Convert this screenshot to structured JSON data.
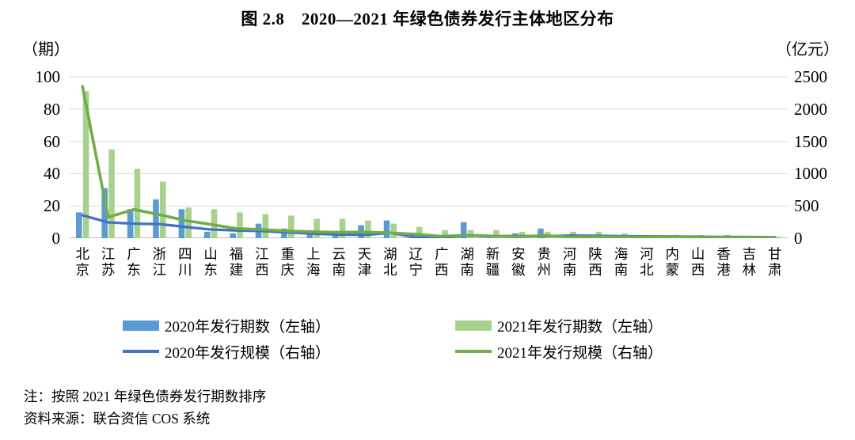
{
  "title": "图 2.8　2020—2021 年绿色债券发行主体地区分布",
  "axes": {
    "left_unit": "（期）",
    "right_unit": "（亿元）",
    "left_ticks": [
      100,
      80,
      60,
      40,
      20,
      0
    ],
    "right_ticks": [
      2500,
      2000,
      1500,
      1000,
      500,
      0
    ]
  },
  "legend": [
    {
      "label": "2020年发行期数（左轴）",
      "swatch": "bar",
      "color": "#5B9BD5"
    },
    {
      "label": "2021年发行期数（左轴）",
      "swatch": "bar",
      "color": "#A9D18E"
    },
    {
      "label": "2020年发行规模（右轴）",
      "swatch": "line",
      "color": "#4472C4"
    },
    {
      "label": "2021年发行规模（右轴）",
      "swatch": "line",
      "color": "#70AD47"
    }
  ],
  "notes": {
    "note1": "注：按照 2021 年绿色债券发行期数排序",
    "note2": "资料来源：联合资信 COS 系统"
  },
  "colors": {
    "bar_2020": "#5B9BD5",
    "bar_2021": "#A9D18E",
    "line_2020": "#4472C4",
    "line_2021": "#70AD47",
    "gridline": "#DADADA",
    "axis_line": "#BFBFBF",
    "background": "#FFFFFF",
    "text": "#000000"
  },
  "chart_data": {
    "type": "bar+line",
    "title": "图 2.8　2020—2021 年绿色债券发行主体地区分布",
    "categories": [
      "北京",
      "江苏",
      "广东",
      "浙江",
      "四川",
      "山东",
      "福建",
      "江西",
      "重庆",
      "上海",
      "云南",
      "天津",
      "湖北",
      "辽宁",
      "广西",
      "湖南",
      "新疆",
      "安徽",
      "贵州",
      "河南",
      "陕西",
      "海南",
      "河北",
      "内蒙",
      "山西",
      "香港",
      "吉林",
      "甘肃"
    ],
    "series": [
      {
        "name": "2020年发行期数（左轴）",
        "type": "bar",
        "axis": "left",
        "color": "#5B9BD5",
        "values": [
          16,
          31,
          18,
          24,
          18,
          4,
          3,
          9,
          6,
          4,
          3,
          8,
          11,
          2,
          2,
          10,
          1,
          3,
          6,
          1,
          2,
          1,
          1,
          1,
          1,
          0,
          1,
          0
        ]
      },
      {
        "name": "2021年发行期数（左轴）",
        "type": "bar",
        "axis": "left",
        "color": "#A9D18E",
        "values": [
          91,
          55,
          43,
          35,
          19,
          18,
          16,
          15,
          14,
          12,
          12,
          11,
          9,
          7,
          5,
          5,
          5,
          4,
          4,
          4,
          4,
          3,
          2,
          2,
          2,
          2,
          1,
          1
        ]
      },
      {
        "name": "2020年发行规模（右轴）",
        "type": "line",
        "axis": "right",
        "color": "#4472C4",
        "values": [
          355,
          245,
          225,
          218,
          175,
          135,
          120,
          110,
          90,
          70,
          55,
          52,
          82,
          15,
          8,
          40,
          30,
          35,
          30,
          42,
          38,
          32,
          30,
          26,
          22,
          20,
          18,
          15
        ]
      },
      {
        "name": "2021年发行规模（右轴）",
        "type": "line",
        "axis": "right",
        "color": "#70AD47",
        "values": [
          2350,
          325,
          445,
          365,
          275,
          215,
          150,
          135,
          112,
          100,
          92,
          95,
          82,
          62,
          30,
          45,
          33,
          22,
          42,
          18,
          25,
          20,
          18,
          15,
          13,
          12,
          10,
          8
        ]
      }
    ],
    "left_axis": {
      "unit": "（期）",
      "min": 0,
      "max": 100,
      "step": 20
    },
    "right_axis": {
      "unit": "（亿元）",
      "min": 0,
      "max": 2500,
      "step": 500
    },
    "grid": true,
    "legend_position": "bottom",
    "sort_note": "按照 2021 年绿色债券发行期数排序",
    "source": "联合资信 COS 系统"
  }
}
